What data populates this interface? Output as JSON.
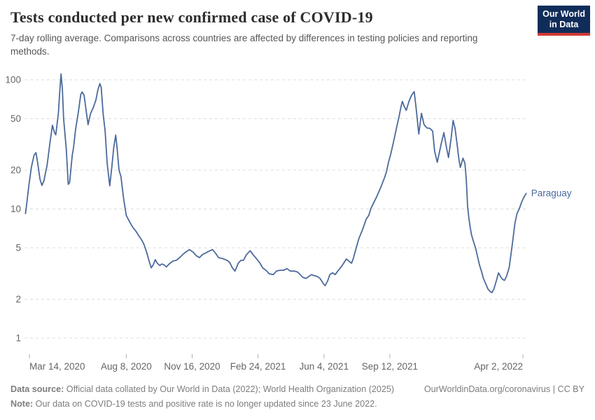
{
  "header": {
    "title": "Tests conducted per new confirmed case of COVID-19",
    "subtitle": "7-day rolling average. Comparisons across countries are affected by differences in testing policies and reporting methods.",
    "logo": {
      "line1": "Our World",
      "line2": "in Data",
      "bg_color": "#102d59",
      "accent_color": "#cf3a34"
    }
  },
  "chart_data": {
    "type": "line",
    "title": "Tests conducted per new confirmed case of COVID-19",
    "y_scale": "log",
    "ylim": [
      1,
      120
    ],
    "y_ticks": [
      1,
      2,
      5,
      10,
      20,
      50,
      100
    ],
    "grid": "horizontal-dashed",
    "x_unit": "days since 2020-03-14",
    "x_ticks": [
      {
        "d": 0,
        "label": "Mar 14, 2020"
      },
      {
        "d": 147,
        "label": "Aug 8, 2020"
      },
      {
        "d": 247,
        "label": "Nov 16, 2020"
      },
      {
        "d": 347,
        "label": "Feb 24, 2021"
      },
      {
        "d": 447,
        "label": "Jun 4, 2021"
      },
      {
        "d": 547,
        "label": "Sep 12, 2021"
      },
      {
        "d": 749,
        "label": "Apr 2, 2022"
      }
    ],
    "series": [
      {
        "name": "Paraguay",
        "color": "#4c6a9c",
        "points": [
          [
            -6,
            9.2
          ],
          [
            -4,
            11
          ],
          [
            -1,
            15
          ],
          [
            3,
            21
          ],
          [
            7,
            26
          ],
          [
            10,
            27.3
          ],
          [
            13,
            22
          ],
          [
            16,
            17
          ],
          [
            19,
            15.2
          ],
          [
            22,
            16.5
          ],
          [
            27,
            22
          ],
          [
            31,
            32
          ],
          [
            35,
            44.5
          ],
          [
            38,
            39
          ],
          [
            40,
            37.5
          ],
          [
            44,
            55
          ],
          [
            46,
            80
          ],
          [
            48,
            111
          ],
          [
            50,
            85
          ],
          [
            52,
            50
          ],
          [
            54,
            38
          ],
          [
            56,
            29
          ],
          [
            59,
            15.5
          ],
          [
            61,
            16
          ],
          [
            65,
            26
          ],
          [
            67,
            30
          ],
          [
            70,
            41
          ],
          [
            74,
            55
          ],
          [
            78,
            77
          ],
          [
            80,
            80.5
          ],
          [
            83,
            76
          ],
          [
            86,
            58
          ],
          [
            89,
            45
          ],
          [
            93,
            55
          ],
          [
            97,
            61
          ],
          [
            101,
            70
          ],
          [
            104,
            84
          ],
          [
            107,
            93.5
          ],
          [
            109,
            87
          ],
          [
            112,
            54
          ],
          [
            115,
            40
          ],
          [
            118,
            22.5
          ],
          [
            122,
            15.1
          ],
          [
            125,
            21
          ],
          [
            128,
            30
          ],
          [
            131,
            37.3
          ],
          [
            133,
            30
          ],
          [
            136,
            20
          ],
          [
            139,
            17.8
          ],
          [
            143,
            12
          ],
          [
            147,
            8.9
          ],
          [
            153,
            7.8
          ],
          [
            157,
            7.2
          ],
          [
            161,
            6.8
          ],
          [
            166,
            6.2
          ],
          [
            170,
            5.8
          ],
          [
            174,
            5.3
          ],
          [
            178,
            4.6
          ],
          [
            182,
            3.9
          ],
          [
            185,
            3.5
          ],
          [
            188,
            3.7
          ],
          [
            191,
            4.05
          ],
          [
            194,
            3.8
          ],
          [
            198,
            3.65
          ],
          [
            201,
            3.75
          ],
          [
            204,
            3.7
          ],
          [
            208,
            3.56
          ],
          [
            212,
            3.75
          ],
          [
            218,
            3.95
          ],
          [
            223,
            4
          ],
          [
            228,
            4.2
          ],
          [
            234,
            4.5
          ],
          [
            239,
            4.7
          ],
          [
            243,
            4.85
          ],
          [
            249,
            4.6
          ],
          [
            253,
            4.35
          ],
          [
            258,
            4.2
          ],
          [
            263,
            4.45
          ],
          [
            269,
            4.6
          ],
          [
            274,
            4.75
          ],
          [
            278,
            4.85
          ],
          [
            283,
            4.5
          ],
          [
            287,
            4.2
          ],
          [
            291,
            4.15
          ],
          [
            295,
            4.1
          ],
          [
            300,
            4
          ],
          [
            304,
            3.85
          ],
          [
            308,
            3.5
          ],
          [
            312,
            3.3
          ],
          [
            317,
            3.8
          ],
          [
            321,
            4
          ],
          [
            325,
            4
          ],
          [
            329,
            4.4
          ],
          [
            335,
            4.75
          ],
          [
            340,
            4.4
          ],
          [
            345,
            4.1
          ],
          [
            350,
            3.8
          ],
          [
            354,
            3.5
          ],
          [
            359,
            3.35
          ],
          [
            364,
            3.15
          ],
          [
            370,
            3.1
          ],
          [
            375,
            3.3
          ],
          [
            380,
            3.35
          ],
          [
            386,
            3.35
          ],
          [
            391,
            3.45
          ],
          [
            396,
            3.3
          ],
          [
            402,
            3.3
          ],
          [
            407,
            3.25
          ],
          [
            411,
            3.1
          ],
          [
            415,
            2.95
          ],
          [
            420,
            2.9
          ],
          [
            424,
            3
          ],
          [
            428,
            3.1
          ],
          [
            432,
            3.05
          ],
          [
            437,
            3
          ],
          [
            441,
            2.9
          ],
          [
            444,
            2.75
          ],
          [
            447,
            2.6
          ],
          [
            449,
            2.55
          ],
          [
            453,
            2.8
          ],
          [
            456,
            3.1
          ],
          [
            460,
            3.2
          ],
          [
            464,
            3.1
          ],
          [
            468,
            3.3
          ],
          [
            473,
            3.55
          ],
          [
            477,
            3.8
          ],
          [
            481,
            4.1
          ],
          [
            486,
            3.9
          ],
          [
            489,
            3.8
          ],
          [
            492,
            4.2
          ],
          [
            496,
            5
          ],
          [
            500,
            5.9
          ],
          [
            506,
            7
          ],
          [
            511,
            8.3
          ],
          [
            515,
            8.9
          ],
          [
            518,
            10
          ],
          [
            523,
            11.3
          ],
          [
            526,
            12.1
          ],
          [
            529,
            13.1
          ],
          [
            532,
            14.2
          ],
          [
            535,
            15.5
          ],
          [
            539,
            17.5
          ],
          [
            542,
            19.5
          ],
          [
            545,
            23
          ],
          [
            548,
            26
          ],
          [
            552,
            32
          ],
          [
            557,
            42
          ],
          [
            561,
            52
          ],
          [
            564,
            62
          ],
          [
            566,
            68
          ],
          [
            569,
            62
          ],
          [
            572,
            58
          ],
          [
            576,
            68
          ],
          [
            580,
            76
          ],
          [
            584,
            81
          ],
          [
            587,
            60
          ],
          [
            591,
            38
          ],
          [
            595,
            55
          ],
          [
            599,
            45
          ],
          [
            603,
            42.5
          ],
          [
            608,
            42
          ],
          [
            612,
            40
          ],
          [
            615,
            28
          ],
          [
            619,
            23
          ],
          [
            625,
            32
          ],
          [
            629,
            39
          ],
          [
            633,
            30
          ],
          [
            636,
            25
          ],
          [
            640,
            35
          ],
          [
            643,
            48.5
          ],
          [
            646,
            42
          ],
          [
            649,
            32
          ],
          [
            652,
            24
          ],
          [
            654,
            21
          ],
          [
            658,
            24.7
          ],
          [
            661,
            22.5
          ],
          [
            663,
            17
          ],
          [
            665,
            10.5
          ],
          [
            667,
            8.5
          ],
          [
            669,
            7.2
          ],
          [
            671,
            6.3
          ],
          [
            674,
            5.6
          ],
          [
            677,
            5
          ],
          [
            680,
            4.3
          ],
          [
            683,
            3.7
          ],
          [
            686,
            3.3
          ],
          [
            689,
            2.9
          ],
          [
            693,
            2.6
          ],
          [
            696,
            2.4
          ],
          [
            699,
            2.3
          ],
          [
            702,
            2.25
          ],
          [
            705,
            2.4
          ],
          [
            708,
            2.7
          ],
          [
            712,
            3.2
          ],
          [
            715,
            3
          ],
          [
            718,
            2.85
          ],
          [
            721,
            2.8
          ],
          [
            724,
            3
          ],
          [
            728,
            3.5
          ],
          [
            731,
            4.5
          ],
          [
            733,
            5.4
          ],
          [
            735,
            6.5
          ],
          [
            737,
            7.8
          ],
          [
            740,
            9.2
          ],
          [
            744,
            10.2
          ],
          [
            747,
            11.3
          ],
          [
            750,
            12.2
          ],
          [
            752,
            12.7
          ],
          [
            754,
            13.2
          ]
        ]
      }
    ],
    "colors": {
      "line": "#4c6a9c",
      "grid": "#dcdcdc",
      "tick_label": "#666666",
      "tick_mark": "#b0b0b0"
    }
  },
  "footer": {
    "datasource_label": "Data source:",
    "datasource_text": " Official data collated by Our World in Data (2022); World Health Organization (2025)",
    "link_text": "OurWorldinData.org/coronavirus | CC BY",
    "note_label": "Note:",
    "note_text": " Our data on COVID-19 tests and positive rate is no longer updated since 23 June 2022."
  }
}
